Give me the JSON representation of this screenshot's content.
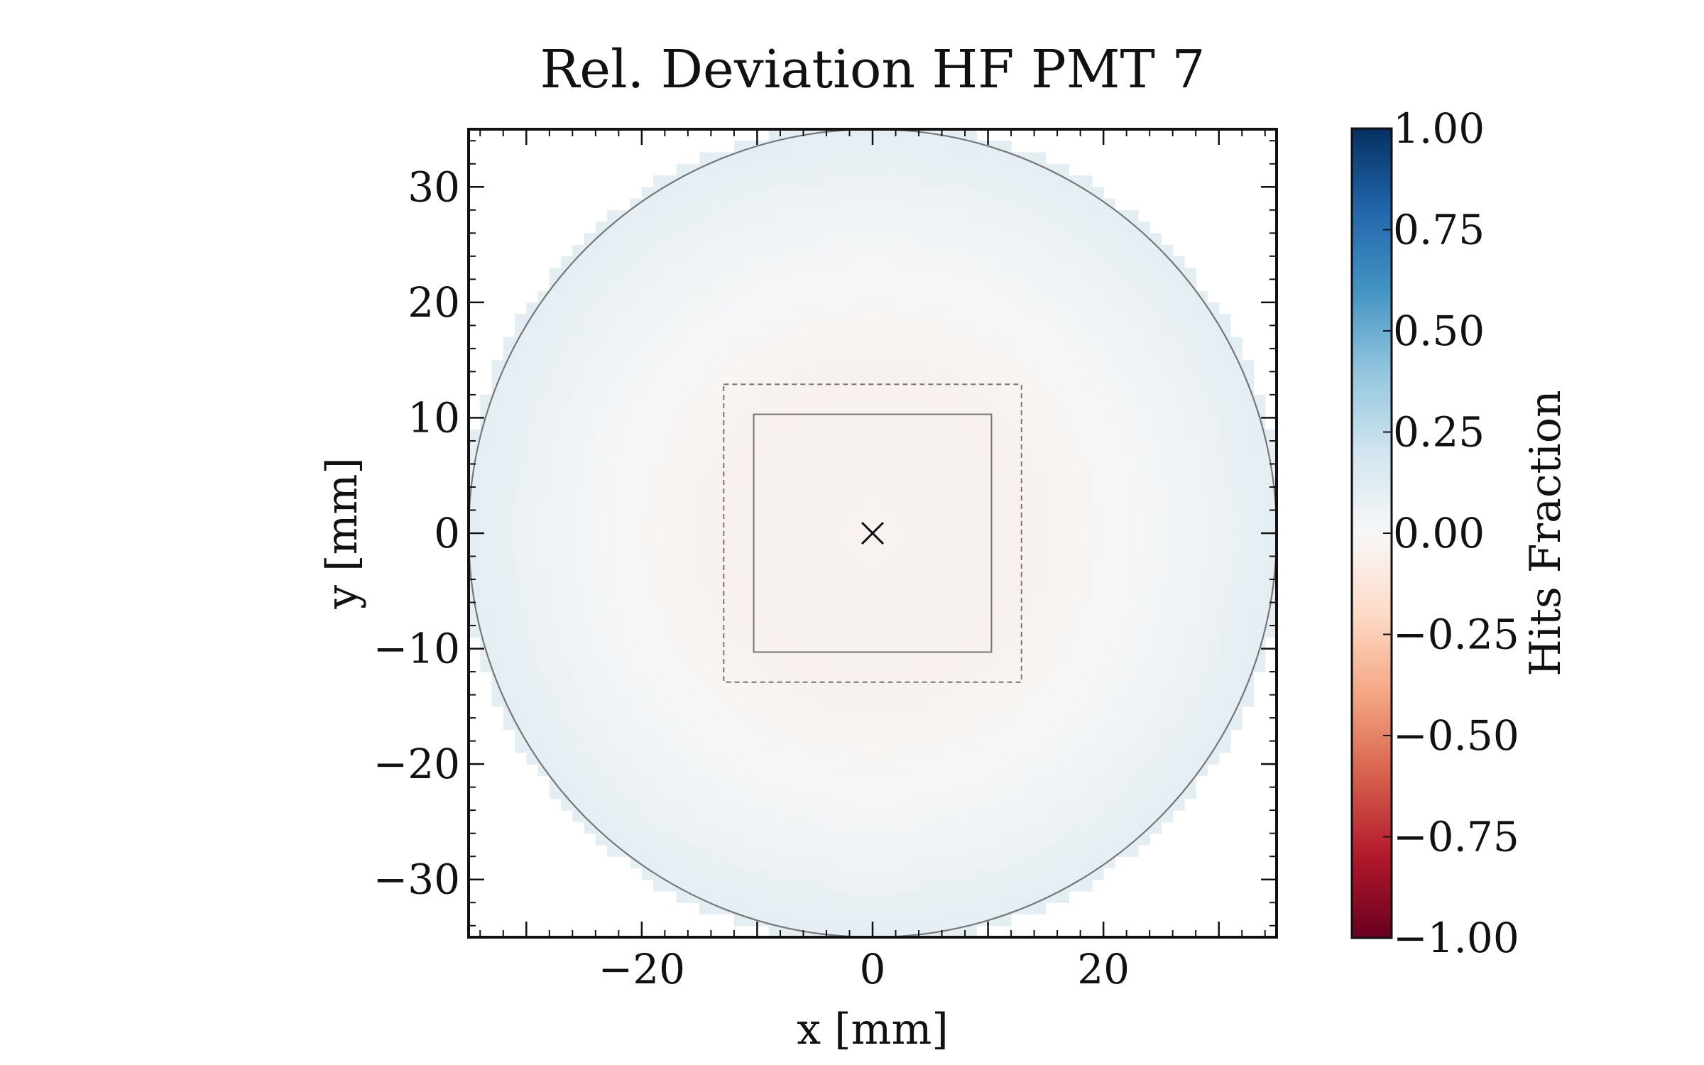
{
  "chart_data": {
    "type": "heatmap",
    "title": "Rel. Deviation HF PMT 7",
    "xlabel": "x [mm]",
    "ylabel": "y [mm]",
    "xlim": [
      -35,
      35
    ],
    "ylim": [
      -35,
      35
    ],
    "xticks": [
      -20,
      0,
      20
    ],
    "xtick_labels": [
      "−20",
      "0",
      "20"
    ],
    "yticks": [
      30,
      20,
      10,
      0,
      -10,
      -20,
      -30
    ],
    "ytick_labels": [
      "30",
      "20",
      "10",
      "0",
      "−10",
      "−20",
      "−30"
    ],
    "grid": false,
    "colormap": "RdBu",
    "colorbar": {
      "label": "Hits Fraction",
      "range": [
        -1.0,
        1.0
      ],
      "ticks": [
        1.0,
        0.75,
        0.5,
        0.25,
        0.0,
        -0.25,
        -0.5,
        -0.75,
        -1.0
      ],
      "tick_labels": [
        "1.00",
        "0.75",
        "0.50",
        "0.25",
        "0.00",
        "−0.25",
        "−0.50",
        "−0.75",
        "−1.00"
      ],
      "colors": [
        "#67001f",
        "#b2182b",
        "#d6604d",
        "#f4a582",
        "#fddbc7",
        "#f7f7f7",
        "#d1e5f0",
        "#92c5de",
        "#4393c3",
        "#2166ac",
        "#053061"
      ]
    },
    "field": {
      "shape": "disk",
      "radius_mm": 35,
      "pixel_mm": 1,
      "center_value": -0.03,
      "mid_value": -0.04,
      "edge_value": 0.1,
      "mid_radius_mm": 13
    },
    "overlays": [
      {
        "kind": "circle",
        "center": [
          0,
          0
        ],
        "radius": 35,
        "style": "solid",
        "color": "#777777"
      },
      {
        "kind": "square",
        "center": [
          0,
          0
        ],
        "half_width": 10.3,
        "style": "solid",
        "color": "#777777"
      },
      {
        "kind": "square",
        "center": [
          0,
          0
        ],
        "half_width": 12.9,
        "style": "dashed",
        "color": "#777777"
      },
      {
        "kind": "marker",
        "symbol": "x",
        "center": [
          0,
          0
        ],
        "color": "#111111"
      }
    ]
  }
}
